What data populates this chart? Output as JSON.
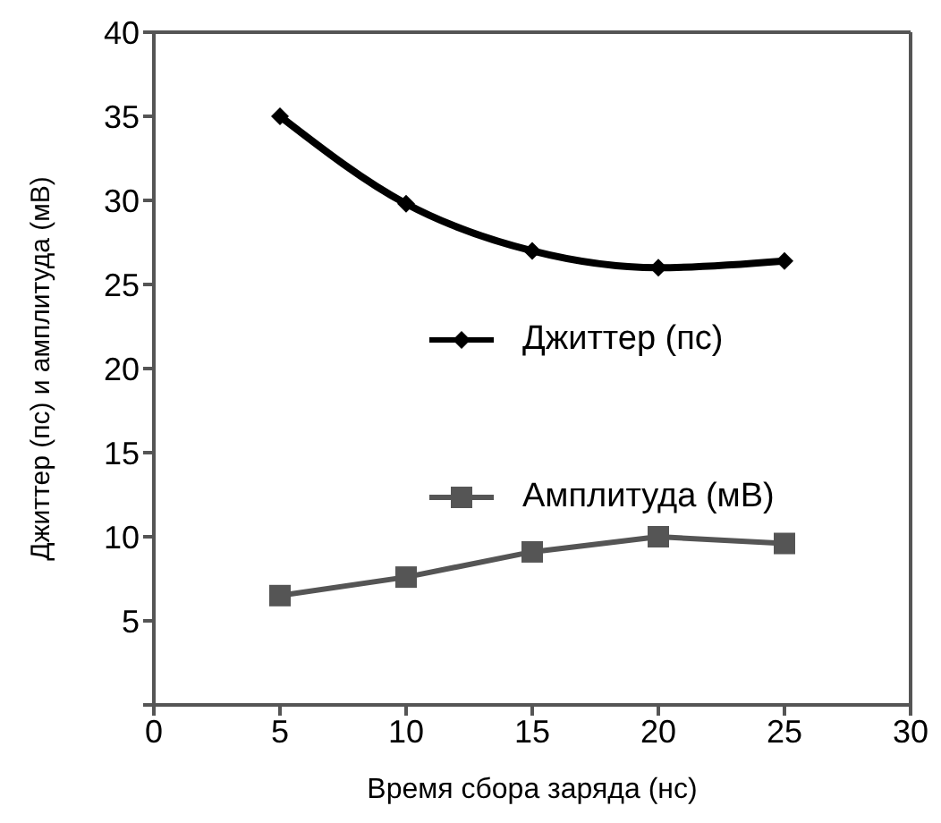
{
  "chart_data": {
    "type": "line",
    "xlabel": "Время сбора заряда (нс)",
    "ylabel": "Джиттер (пс) и амплитуда (мВ)",
    "x": [
      5,
      10,
      15,
      20,
      25
    ],
    "series": [
      {
        "name": "Джиттер (пс)",
        "color": "#000000",
        "marker": "diamond",
        "values": [
          35,
          29.8,
          27,
          26,
          26.4
        ]
      },
      {
        "name": "Амплитуда (мВ)",
        "color": "#555555",
        "marker": "square",
        "values": [
          6.5,
          7.6,
          9.1,
          10,
          9.6
        ]
      }
    ],
    "xlim": [
      0,
      30
    ],
    "xticks": [
      0,
      5,
      10,
      15,
      20,
      25,
      30
    ],
    "ylim": [
      0,
      40
    ],
    "yticks": [
      {
        "value": 0,
        "label": null
      },
      5,
      10,
      15,
      20,
      25,
      30,
      35,
      40
    ],
    "legend": "right"
  }
}
